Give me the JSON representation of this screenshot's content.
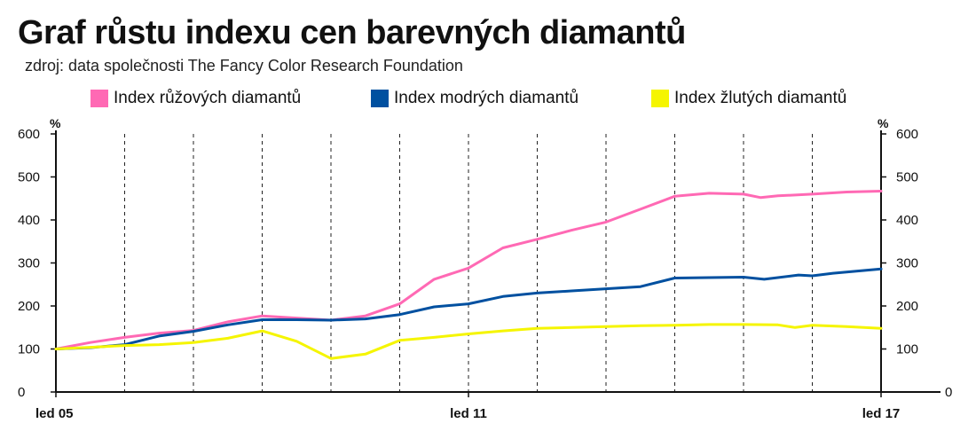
{
  "title": "Graf růstu indexu cen barevných diamantů",
  "subtitle": "zdroj: data společnosti The Fancy Color Research Foundation",
  "chart_data": {
    "type": "line",
    "title": "Graf růstu indexu cen barevných diamantů",
    "subtitle": "zdroj: data společnosti The Fancy Color Research Foundation",
    "y_unit": "%",
    "ylim": [
      0,
      600
    ],
    "yticks": [
      0,
      100,
      200,
      300,
      400,
      500,
      600
    ],
    "right_yticks": [
      0,
      100,
      200,
      300,
      400,
      500,
      600
    ],
    "xlim": [
      0,
      12
    ],
    "x_tick_labels": [
      {
        "x": 0,
        "label": "led 05"
      },
      {
        "x": 6,
        "label": "led 11"
      },
      {
        "x": 12,
        "label": "led 17"
      }
    ],
    "year_dividers": [
      1,
      2,
      3,
      4,
      5,
      6,
      7,
      8,
      9,
      10,
      11,
      12
    ],
    "grid": "vertical dashed",
    "legend_position": "top",
    "series": [
      {
        "name": "Index růžových diamantů",
        "color": "#ff69b4",
        "points": [
          [
            0,
            100
          ],
          [
            0.5,
            115
          ],
          [
            1,
            127
          ],
          [
            1.5,
            137
          ],
          [
            2,
            143
          ],
          [
            2.5,
            163
          ],
          [
            3,
            177
          ],
          [
            3.5,
            172
          ],
          [
            4,
            167
          ],
          [
            4.5,
            177
          ],
          [
            5,
            205
          ],
          [
            5.5,
            262
          ],
          [
            6,
            288
          ],
          [
            6.5,
            335
          ],
          [
            7,
            355
          ],
          [
            7.5,
            376
          ],
          [
            8,
            395
          ],
          [
            8.5,
            425
          ],
          [
            9,
            455
          ],
          [
            9.5,
            462
          ],
          [
            10,
            460
          ],
          [
            10.25,
            452
          ],
          [
            10.5,
            456
          ],
          [
            11,
            460
          ],
          [
            11.5,
            465
          ],
          [
            12,
            467
          ]
        ]
      },
      {
        "name": "Index modrých diamantů",
        "color": "#0050a0",
        "points": [
          [
            0,
            100
          ],
          [
            0.5,
            103
          ],
          [
            1,
            110
          ],
          [
            1.5,
            130
          ],
          [
            2,
            141
          ],
          [
            2.5,
            156
          ],
          [
            3,
            168
          ],
          [
            3.5,
            168
          ],
          [
            4,
            167
          ],
          [
            4.5,
            170
          ],
          [
            5,
            180
          ],
          [
            5.5,
            198
          ],
          [
            6,
            205
          ],
          [
            6.5,
            222
          ],
          [
            7,
            230
          ],
          [
            7.5,
            235
          ],
          [
            8,
            240
          ],
          [
            8.5,
            245
          ],
          [
            9,
            265
          ],
          [
            9.5,
            266
          ],
          [
            10,
            267
          ],
          [
            10.3,
            262
          ],
          [
            10.8,
            272
          ],
          [
            11,
            270
          ],
          [
            11.3,
            276
          ],
          [
            12,
            286
          ]
        ]
      },
      {
        "name": "Index žlutých diamantů",
        "color": "#f5f500",
        "points": [
          [
            0,
            100
          ],
          [
            0.5,
            104
          ],
          [
            1,
            108
          ],
          [
            1.5,
            110
          ],
          [
            2,
            115
          ],
          [
            2.5,
            125
          ],
          [
            3,
            142
          ],
          [
            3.5,
            118
          ],
          [
            4,
            78
          ],
          [
            4.5,
            88
          ],
          [
            5,
            120
          ],
          [
            5.5,
            127
          ],
          [
            6,
            135
          ],
          [
            6.5,
            142
          ],
          [
            7,
            148
          ],
          [
            7.5,
            150
          ],
          [
            8,
            152
          ],
          [
            8.5,
            154
          ],
          [
            9,
            155
          ],
          [
            9.5,
            157
          ],
          [
            10,
            157
          ],
          [
            10.5,
            156
          ],
          [
            10.75,
            150
          ],
          [
            11,
            155
          ],
          [
            11.5,
            152
          ],
          [
            12,
            148
          ]
        ]
      }
    ]
  }
}
